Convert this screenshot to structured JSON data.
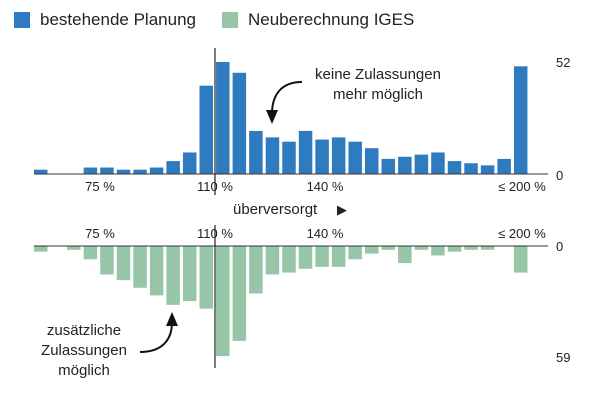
{
  "legend": {
    "items": [
      {
        "label": "bestehende Planung",
        "color": "#2f7bbf"
      },
      {
        "label": "Neuberechnung IGES",
        "color": "#97c6a6"
      }
    ]
  },
  "chart_data": [
    {
      "type": "bar",
      "orientation": "up",
      "series_name": "bestehende Planung",
      "color": "#2f7bbf",
      "x_tick_labels": [
        "75 %",
        "110 %",
        "140 %",
        "≤ 200 %"
      ],
      "y_tick_labels": [
        "52",
        "0"
      ],
      "ylim": [
        0,
        52
      ],
      "marker_label": "110 %",
      "values": [
        2,
        0,
        0,
        3,
        3,
        2,
        2,
        3,
        6,
        10,
        41,
        52,
        47,
        20,
        17,
        15,
        20,
        16,
        17,
        15,
        12,
        7,
        8,
        9,
        10,
        6,
        5,
        4,
        7,
        50
      ],
      "annotation": {
        "lines": [
          "keine Zulassungen",
          "mehr möglich"
        ]
      }
    },
    {
      "type": "bar",
      "orientation": "down",
      "series_name": "Neuberechnung IGES",
      "color": "#97c6a6",
      "x_tick_labels": [
        "75 %",
        "110 %",
        "140 %",
        "≤ 200 %"
      ],
      "y_tick_labels": [
        "0",
        "59"
      ],
      "ylim": [
        0,
        59
      ],
      "values": [
        3,
        0,
        2,
        7,
        15,
        18,
        22,
        26,
        31,
        29,
        33,
        58,
        50,
        25,
        15,
        14,
        12,
        11,
        11,
        7,
        4,
        2,
        9,
        2,
        5,
        3,
        2,
        2,
        0,
        14
      ],
      "annotation": {
        "lines": [
          "zusätzliche",
          "Zulassungen",
          "möglich"
        ]
      }
    }
  ],
  "divider": {
    "label": "überversorgt",
    "arrow": "▶"
  }
}
